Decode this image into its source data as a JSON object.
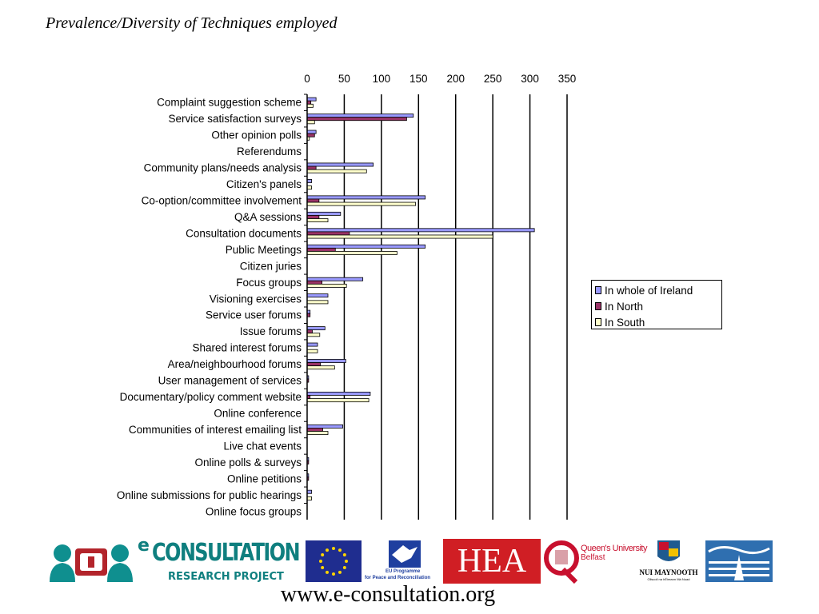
{
  "title": "Prevalence/Diversity of Techniques employed",
  "footer_url": "www.e-consultation.org",
  "colors": {
    "whole_ireland": "#9999ff",
    "north": "#993366",
    "south": "#ffffcc"
  },
  "logos": {
    "econsultation_main": "CONSULTATION",
    "econsultation_e": "e",
    "econsultation_sub": "RESEARCH PROJECT",
    "eu_programme_line1": "EU Programme",
    "eu_programme_line2": "for Peace and Reconciliation",
    "hea": "HEA",
    "queens_line1": "Queen's University",
    "queens_line2": "Belfast",
    "nui_maynooth": "NUI MAYNOOTH",
    "nui_maynooth_sub": "Ollscoil na hÉireann Má Nuad"
  },
  "chart_data": {
    "type": "bar",
    "orientation": "horizontal",
    "title": "",
    "xlabel": "",
    "ylabel": "",
    "xlim": [
      0,
      350
    ],
    "ticks": [
      0,
      50,
      100,
      150,
      200,
      250,
      300,
      350
    ],
    "grid": true,
    "legend_position": "right",
    "categories": [
      "Complaint suggestion scheme",
      "Service satisfaction surveys",
      "Other opinion polls",
      "Referendums",
      "Community plans/needs analysis",
      "Citizen's panels",
      "Co-option/committee involvement",
      "Q&A sessions",
      "Consultation documents",
      "Public Meetings",
      "Citizen juries",
      "Focus groups",
      "Visioning exercises",
      "Service user forums",
      "Issue forums",
      "Shared interest forums",
      "Area/neighbourhood forums",
      "User management of services",
      "Documentary/policy comment website",
      "Online conference",
      "Communities of interest emailing list",
      "Live chat events",
      "Online polls & surveys",
      "Online petitions",
      "Online submissions for public hearings",
      "Online focus groups"
    ],
    "series": [
      {
        "name": "In whole of Ireland",
        "values": [
          12,
          143,
          12,
          0,
          89,
          6,
          159,
          45,
          306,
          159,
          0,
          75,
          28,
          4,
          24,
          14,
          52,
          2,
          85,
          0,
          48,
          0,
          2,
          2,
          6,
          0
        ]
      },
      {
        "name": "In North",
        "values": [
          5,
          134,
          10,
          0,
          12,
          0,
          16,
          16,
          57,
          38,
          0,
          20,
          0,
          4,
          7,
          0,
          18,
          2,
          4,
          0,
          21,
          0,
          2,
          2,
          0,
          0
        ]
      },
      {
        "name": "In South",
        "values": [
          8,
          10,
          3,
          0,
          80,
          6,
          146,
          28,
          250,
          121,
          0,
          53,
          28,
          0,
          17,
          14,
          37,
          0,
          83,
          0,
          28,
          0,
          0,
          0,
          6,
          0
        ]
      }
    ]
  }
}
